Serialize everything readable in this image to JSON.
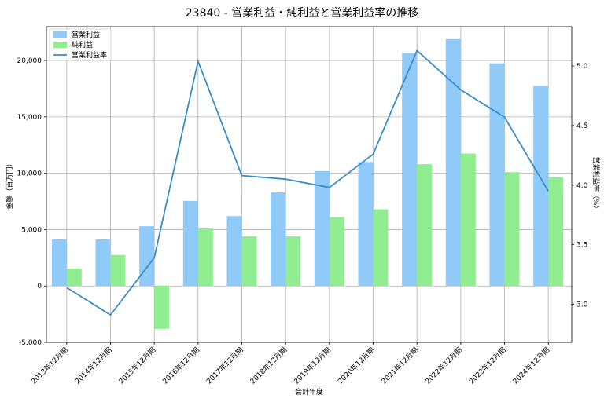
{
  "chart_data": {
    "type": "bar",
    "title": "23840 - 営業利益・純利益と営業利益率の推移",
    "xlabel": "会計年度",
    "ylabel": "金額（百万円）",
    "y2label": "営業利益率（%）",
    "categories": [
      "2013年12月期",
      "2014年12月期",
      "2015年12月期",
      "2016年12月期",
      "2017年12月期",
      "2018年12月期",
      "2019年12月期",
      "2020年12月期",
      "2021年12月期",
      "2022年12月期",
      "2023年12月期",
      "2024年12月期"
    ],
    "ylim": [
      -5000,
      23000
    ],
    "yticks": [
      -5000,
      0,
      5000,
      10000,
      15000,
      20000
    ],
    "y2lim": [
      2.68,
      5.33
    ],
    "y2ticks": [
      3.0,
      3.5,
      4.0,
      4.5,
      5.0
    ],
    "grid": true,
    "legend": "top-left",
    "series": [
      {
        "name": "営業利益",
        "kind": "bar",
        "color": "#90CAF9",
        "values": [
          4150,
          4150,
          5300,
          7550,
          6200,
          8300,
          10200,
          11000,
          20700,
          21900,
          19750,
          17750
        ]
      },
      {
        "name": "純利益",
        "kind": "bar",
        "color": "#90EE90",
        "values": [
          1550,
          2750,
          -3800,
          5100,
          4400,
          4400,
          6100,
          6800,
          10800,
          11750,
          10100,
          9650
        ]
      },
      {
        "name": "営業利益率",
        "kind": "line",
        "axis": "right",
        "color": "#3A8CC6",
        "values": [
          3.14,
          2.91,
          3.39,
          5.04,
          4.08,
          4.05,
          3.98,
          4.26,
          5.13,
          4.8,
          4.57,
          3.95
        ]
      }
    ]
  }
}
